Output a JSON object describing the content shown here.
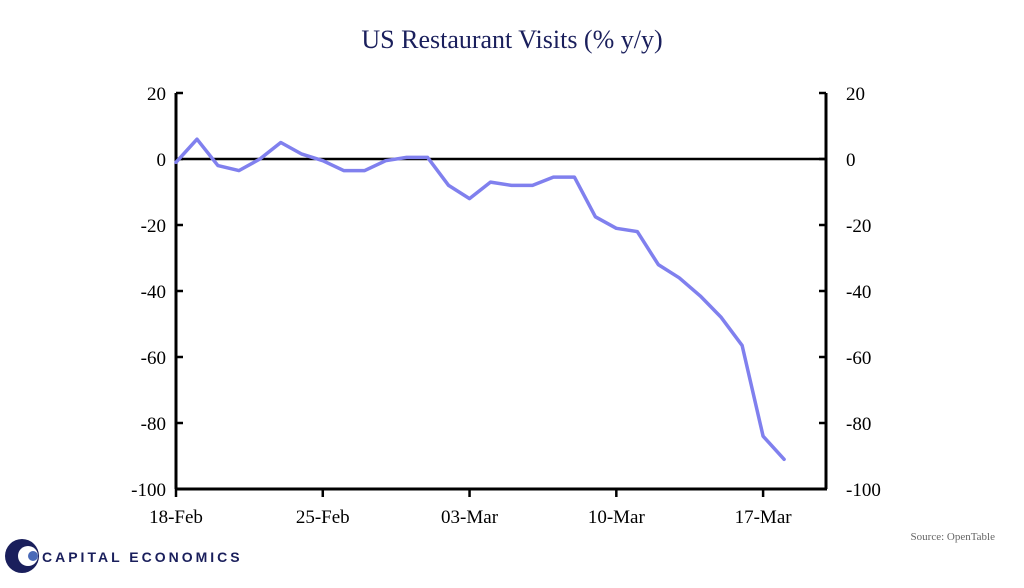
{
  "chart_data": {
    "type": "line",
    "title": "US Restaurant Visits (% y/y)",
    "xlabel": "",
    "ylabel": "",
    "ylim": [
      -100,
      20
    ],
    "yticks": [
      20,
      0,
      -20,
      -40,
      -60,
      -80,
      -100
    ],
    "yticks_right": [
      20,
      0,
      -20,
      -40,
      -60,
      -80,
      -100
    ],
    "x_tick_labels": [
      "18-Feb",
      "25-Feb",
      "03-Mar",
      "10-Mar",
      "17-Mar"
    ],
    "x_tick_days": [
      0,
      7,
      14,
      21,
      28
    ],
    "xlim": [
      0,
      31
    ],
    "grid": false,
    "legend": "none",
    "series": [
      {
        "color": "#8080ee",
        "x": [
          0,
          1,
          2,
          3,
          4,
          5,
          6,
          7,
          8,
          9,
          10,
          11,
          12,
          13,
          14,
          15,
          16,
          17,
          18,
          19,
          20,
          21,
          22,
          23,
          24,
          25,
          26,
          27,
          28,
          29
        ],
        "values": [
          -1,
          6,
          -2,
          -3.5,
          0,
          5,
          1.5,
          -0.5,
          -3.5,
          -3.5,
          -0.5,
          0.5,
          0.5,
          -8,
          -12,
          -7,
          -8,
          -8,
          -5.5,
          -5.5,
          -17.5,
          -21,
          -22,
          -32,
          -36,
          -41.5,
          -48,
          -56.5,
          -84,
          -91
        ]
      }
    ]
  },
  "footer": {
    "source": "Source: OpenTable",
    "brand": "CAPITAL ECONOMICS",
    "brand_color": "#1a1f5c"
  }
}
